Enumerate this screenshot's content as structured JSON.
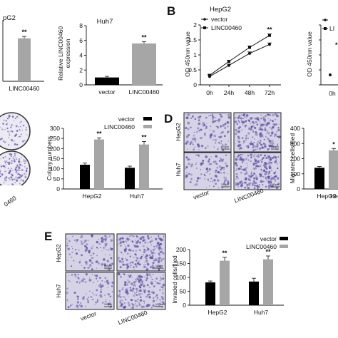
{
  "colors": {
    "vector": "#000000",
    "linc": "#a6a6a6",
    "micro_bg": "#d6d3e6",
    "stain": "#5a4fa0",
    "colony_stain": "#6f5fb0"
  },
  "panelA": {
    "left_title": "pG2",
    "left_xtick": "LINC00460",
    "right_title": "Huh7",
    "ylabel": "Relative LINC00460 expression",
    "ylabel_line1": "Relative LINC00460",
    "ylabel_line2": "expression",
    "xticks": [
      "vector",
      "LINC00460"
    ],
    "sig": "**"
  },
  "panelB": {
    "label": "B",
    "title": "HepG2",
    "ylabel": "OD 450nm value",
    "legend": [
      "vector",
      "LINC00460"
    ],
    "right_legend_partial": "LI",
    "right_ylabel": "OD 450nm value",
    "right_xtick": "0h",
    "right_sig_partial": "*",
    "sig": "**"
  },
  "panelC": {
    "ylabel": "Colony numbers",
    "legend": [
      "vector",
      "LINC00460"
    ],
    "groups": [
      "HepG2",
      "Huh7"
    ],
    "dish_label": "0460",
    "sig": "**"
  },
  "panelD": {
    "label": "D",
    "rows": [
      "HepG2",
      "Huh7"
    ],
    "cols": [
      "vector",
      "LINC00460"
    ],
    "ylabel": "Migrated cells/flied",
    "group_partial": "HepG",
    "scale_text": "100µm",
    "sig_partial": "*"
  },
  "panelE": {
    "label": "E",
    "rows": [
      "HepG2",
      "Huh7"
    ],
    "cols": [
      "vector",
      "LINC00460"
    ],
    "ylabel": "Invaded cells/flied",
    "legend": [
      "vector",
      "LINC00460"
    ],
    "groups": [
      "HepG2",
      "Huh7"
    ],
    "scale_text": "100µm",
    "sig": "**"
  },
  "chart_data": [
    {
      "type": "bar",
      "panel": "A-left",
      "title": "pG2",
      "categories": [
        "LINC00460"
      ],
      "values": [
        5.6
      ],
      "errors": [
        0.25
      ],
      "ylim": [
        0,
        8
      ],
      "yticks": []
    },
    {
      "type": "bar",
      "panel": "A-right",
      "title": "Huh7",
      "categories": [
        "vector",
        "LINC00460"
      ],
      "values": [
        1.0,
        5.6
      ],
      "errors": [
        0.15,
        0.25
      ],
      "ylabel": "Relative LINC00460 expression",
      "ylim": [
        0,
        8
      ],
      "yticks": [
        0,
        2,
        4,
        6,
        8
      ]
    },
    {
      "type": "line",
      "panel": "B-left",
      "title": "HepG2",
      "x": [
        "0h",
        "24h",
        "48h",
        "72h"
      ],
      "series": [
        {
          "name": "vector",
          "values": [
            0.28,
            0.65,
            1.05,
            1.35
          ],
          "errors": [
            0.03,
            0.04,
            0.05,
            0.05
          ]
        },
        {
          "name": "LINC00460",
          "values": [
            0.32,
            0.78,
            1.25,
            1.65
          ],
          "errors": [
            0.03,
            0.04,
            0.05,
            0.05
          ]
        }
      ],
      "ylabel": "OD 450nm value",
      "ylim": [
        0,
        2.0
      ],
      "yticks": [
        0.0,
        0.5,
        1.0,
        1.5,
        2.0
      ]
    },
    {
      "type": "line",
      "panel": "B-right",
      "x": [
        "0h"
      ],
      "ylabel": "OD 450nm value",
      "ylim": [
        0,
        2.0
      ],
      "yticks": [
        0.0,
        0.5,
        1.0,
        1.5,
        2.0
      ]
    },
    {
      "type": "bar",
      "panel": "C",
      "categories": [
        "HepG2",
        "Huh7"
      ],
      "series": [
        {
          "name": "vector",
          "values": [
            120,
            105
          ],
          "errors": [
            8,
            8
          ]
        },
        {
          "name": "LINC00460",
          "values": [
            245,
            220
          ],
          "errors": [
            8,
            15
          ]
        }
      ],
      "ylabel": "Colony numbers",
      "ylim": [
        0,
        300
      ],
      "yticks": [
        0,
        50,
        100,
        150,
        200,
        250,
        300
      ]
    },
    {
      "type": "bar",
      "panel": "D",
      "categories": [
        "HepG2"
      ],
      "series": [
        {
          "name": "vector",
          "values": [
            140
          ],
          "errors": [
            8
          ]
        },
        {
          "name": "LINC00460",
          "values": [
            255
          ],
          "errors": [
            12
          ]
        }
      ],
      "ylabel": "Migrated cells/flied",
      "ylim": [
        0,
        400
      ],
      "yticks": [
        0,
        100,
        200,
        300,
        400
      ]
    },
    {
      "type": "bar",
      "panel": "E",
      "categories": [
        "HepG2",
        "Huh7"
      ],
      "series": [
        {
          "name": "vector",
          "values": [
            82,
            85
          ],
          "errors": [
            5,
            12
          ]
        },
        {
          "name": "LINC00460",
          "values": [
            160,
            165
          ],
          "errors": [
            12,
            12
          ]
        }
      ],
      "ylabel": "Invaded cells/flied",
      "ylim": [
        0,
        200
      ],
      "yticks": [
        0,
        50,
        100,
        150,
        200
      ]
    }
  ]
}
